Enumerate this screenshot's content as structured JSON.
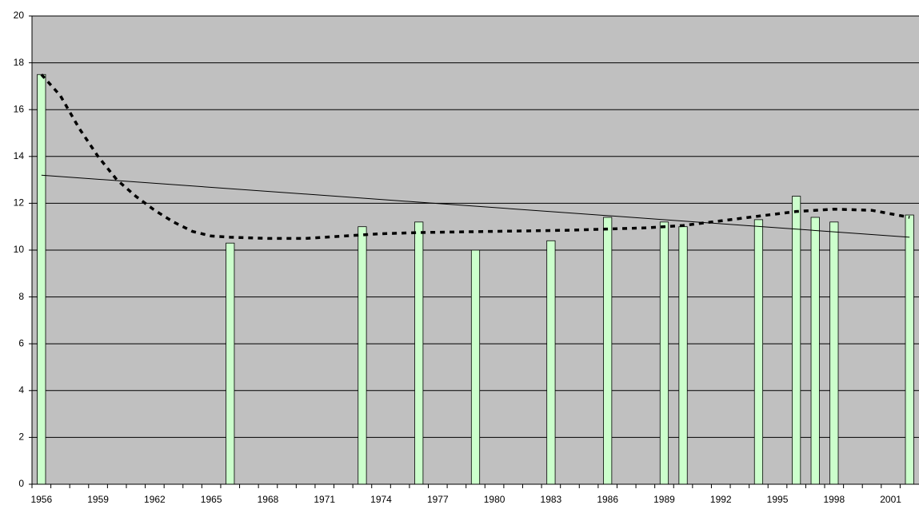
{
  "chart_data": {
    "type": "bar",
    "categories": [
      "1956",
      null,
      null,
      "1959",
      null,
      null,
      "1962",
      null,
      null,
      "1965",
      null,
      null,
      "1968",
      null,
      null,
      "1971",
      null,
      null,
      "1974",
      null,
      null,
      "1977",
      null,
      null,
      "1980",
      null,
      null,
      "1983",
      null,
      null,
      "1986",
      null,
      null,
      "1989",
      null,
      null,
      "1992",
      null,
      null,
      "1995",
      null,
      null,
      "1998",
      null,
      null,
      "2001",
      null
    ],
    "values": [
      17.5,
      null,
      null,
      null,
      null,
      null,
      null,
      null,
      null,
      null,
      10.3,
      null,
      null,
      null,
      null,
      null,
      null,
      11.0,
      null,
      null,
      11.2,
      null,
      null,
      10.0,
      null,
      null,
      null,
      10.4,
      null,
      null,
      11.4,
      null,
      null,
      11.2,
      11.0,
      null,
      null,
      null,
      11.3,
      null,
      12.3,
      11.4,
      11.2,
      null,
      null,
      null,
      11.5
    ],
    "color": "#ccffcc",
    "background": "#c0c0c0",
    "ylim": [
      0,
      20
    ],
    "yticks": [
      0,
      2,
      4,
      6,
      8,
      10,
      12,
      14,
      16,
      18,
      20
    ],
    "grid": true,
    "trendlines": [
      {
        "style": "solid",
        "x": [
          1956,
          2002
        ],
        "values": [
          13.2,
          10.55
        ]
      },
      {
        "style": "dotted",
        "x": [
          1956,
          1957,
          1958,
          1959,
          1960,
          1961,
          1962,
          1963,
          1964,
          1965,
          1966,
          1968,
          1970,
          1972,
          1974,
          1976,
          1980,
          1984,
          1988,
          1990,
          1992,
          1994,
          1996,
          1998,
          2000,
          2002
        ],
        "values": [
          17.5,
          16.6,
          15.2,
          14.0,
          13.0,
          12.3,
          11.7,
          11.2,
          10.8,
          10.6,
          10.55,
          10.5,
          10.5,
          10.6,
          10.7,
          10.75,
          10.8,
          10.85,
          10.95,
          11.05,
          11.25,
          11.45,
          11.65,
          11.75,
          11.7,
          11.4
        ]
      }
    ]
  }
}
